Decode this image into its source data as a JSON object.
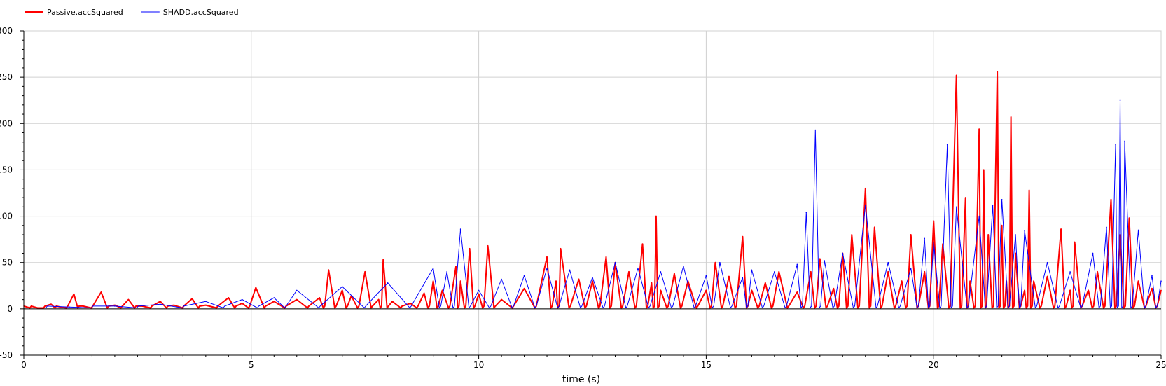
{
  "chart_data": {
    "type": "line",
    "xlabel": "time (s)",
    "ylabel": "",
    "xlim": [
      0,
      25
    ],
    "ylim": [
      -50,
      300
    ],
    "x_ticks": [
      0,
      5,
      10,
      15,
      20,
      25
    ],
    "y_ticks": [
      -50,
      0,
      50,
      100,
      150,
      200,
      250,
      300
    ],
    "grid": true,
    "legend_position": "top-left",
    "series": [
      {
        "name": "Passive.accSquared",
        "color": "#ff0000",
        "points": [
          [
            0.0,
            3
          ],
          [
            0.3,
            1
          ],
          [
            0.6,
            5
          ],
          [
            0.8,
            2
          ],
          [
            1.1,
            16
          ],
          [
            1.3,
            3
          ],
          [
            1.7,
            18
          ],
          [
            2.0,
            4
          ],
          [
            2.3,
            10
          ],
          [
            2.6,
            3
          ],
          [
            3.0,
            8
          ],
          [
            3.3,
            4
          ],
          [
            3.7,
            11
          ],
          [
            4.0,
            4
          ],
          [
            4.5,
            12
          ],
          [
            4.8,
            6
          ],
          [
            5.1,
            23
          ],
          [
            5.5,
            8
          ],
          [
            6.0,
            10
          ],
          [
            6.5,
            12
          ],
          [
            6.7,
            42
          ],
          [
            7.0,
            20
          ],
          [
            7.2,
            14
          ],
          [
            7.5,
            40
          ],
          [
            7.8,
            10
          ],
          [
            7.9,
            53
          ],
          [
            8.1,
            8
          ],
          [
            8.5,
            6
          ],
          [
            8.8,
            17
          ],
          [
            9.0,
            30
          ],
          [
            9.2,
            20
          ],
          [
            9.5,
            46
          ],
          [
            9.6,
            30
          ],
          [
            9.8,
            65
          ],
          [
            10.0,
            16
          ],
          [
            10.2,
            68
          ],
          [
            10.5,
            10
          ],
          [
            11.0,
            22
          ],
          [
            11.5,
            56
          ],
          [
            11.7,
            30
          ],
          [
            11.8,
            65
          ],
          [
            12.2,
            32
          ],
          [
            12.5,
            30
          ],
          [
            12.8,
            56
          ],
          [
            13.0,
            50
          ],
          [
            13.3,
            40
          ],
          [
            13.6,
            70
          ],
          [
            13.8,
            28
          ],
          [
            13.9,
            100
          ],
          [
            14.0,
            20
          ],
          [
            14.3,
            38
          ],
          [
            14.6,
            30
          ],
          [
            15.0,
            20
          ],
          [
            15.2,
            50
          ],
          [
            15.5,
            35
          ],
          [
            15.8,
            78
          ],
          [
            16.0,
            20
          ],
          [
            16.3,
            28
          ],
          [
            16.6,
            40
          ],
          [
            17.0,
            18
          ],
          [
            17.3,
            40
          ],
          [
            17.5,
            54
          ],
          [
            17.8,
            22
          ],
          [
            18.0,
            60
          ],
          [
            18.2,
            80
          ],
          [
            18.5,
            130
          ],
          [
            18.7,
            88
          ],
          [
            19.0,
            40
          ],
          [
            19.3,
            30
          ],
          [
            19.5,
            80
          ],
          [
            19.8,
            40
          ],
          [
            20.0,
            95
          ],
          [
            20.2,
            70
          ],
          [
            20.5,
            252
          ],
          [
            20.7,
            120
          ],
          [
            20.8,
            30
          ],
          [
            21.0,
            194
          ],
          [
            21.1,
            150
          ],
          [
            21.2,
            80
          ],
          [
            21.4,
            256
          ],
          [
            21.5,
            90
          ],
          [
            21.6,
            30
          ],
          [
            21.7,
            207
          ],
          [
            21.8,
            60
          ],
          [
            22.0,
            20
          ],
          [
            22.1,
            128
          ],
          [
            22.2,
            30
          ],
          [
            22.5,
            35
          ],
          [
            22.8,
            86
          ],
          [
            23.0,
            20
          ],
          [
            23.1,
            72
          ],
          [
            23.4,
            20
          ],
          [
            23.6,
            40
          ],
          [
            23.9,
            118
          ],
          [
            24.1,
            80
          ],
          [
            24.3,
            98
          ],
          [
            24.5,
            30
          ],
          [
            24.8,
            22
          ],
          [
            25.0,
            20
          ]
        ]
      },
      {
        "name": "SHADD.accSquared",
        "color": "#0000ff",
        "points": [
          [
            0.0,
            1
          ],
          [
            1.0,
            2
          ],
          [
            2.0,
            3
          ],
          [
            3.0,
            5
          ],
          [
            4.0,
            8
          ],
          [
            4.8,
            10
          ],
          [
            5.5,
            12
          ],
          [
            6.0,
            20
          ],
          [
            7.0,
            24
          ],
          [
            8.0,
            28
          ],
          [
            9.0,
            44
          ],
          [
            9.3,
            40
          ],
          [
            9.6,
            86
          ],
          [
            10.0,
            20
          ],
          [
            10.5,
            32
          ],
          [
            11.0,
            36
          ],
          [
            11.5,
            44
          ],
          [
            12.0,
            42
          ],
          [
            12.5,
            34
          ],
          [
            13.0,
            50
          ],
          [
            13.5,
            44
          ],
          [
            14.0,
            40
          ],
          [
            14.5,
            46
          ],
          [
            15.0,
            36
          ],
          [
            15.3,
            50
          ],
          [
            15.8,
            34
          ],
          [
            16.0,
            42
          ],
          [
            16.5,
            40
          ],
          [
            17.0,
            48
          ],
          [
            17.2,
            104
          ],
          [
            17.4,
            193
          ],
          [
            17.6,
            52
          ],
          [
            18.0,
            60
          ],
          [
            18.5,
            112
          ],
          [
            19.0,
            50
          ],
          [
            19.5,
            44
          ],
          [
            19.8,
            76
          ],
          [
            20.0,
            72
          ],
          [
            20.3,
            177
          ],
          [
            20.5,
            110
          ],
          [
            21.0,
            100
          ],
          [
            21.3,
            112
          ],
          [
            21.5,
            118
          ],
          [
            21.8,
            80
          ],
          [
            22.0,
            84
          ],
          [
            22.5,
            50
          ],
          [
            23.0,
            40
          ],
          [
            23.5,
            60
          ],
          [
            23.8,
            88
          ],
          [
            24.0,
            177
          ],
          [
            24.1,
            225
          ],
          [
            24.2,
            181
          ],
          [
            24.5,
            85
          ],
          [
            24.8,
            36
          ],
          [
            25.0,
            30
          ]
        ]
      }
    ]
  }
}
